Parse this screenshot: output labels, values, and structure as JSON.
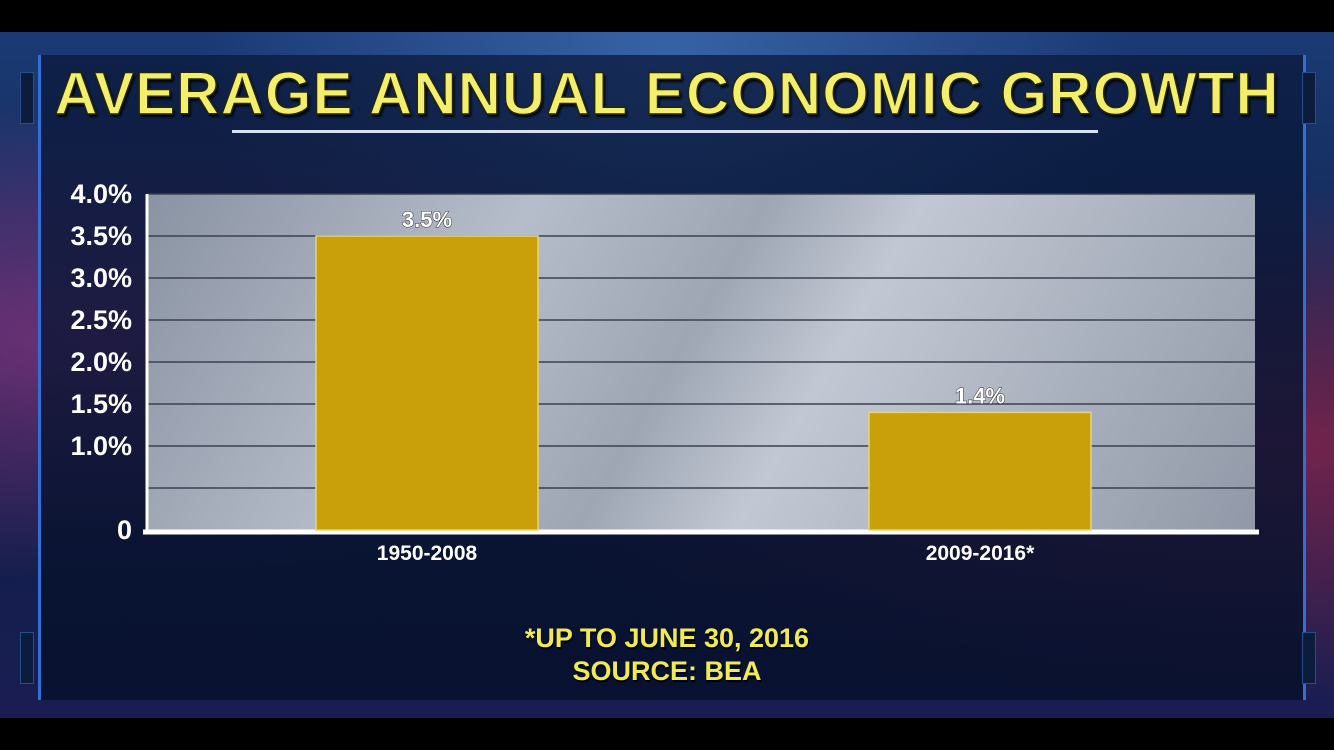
{
  "colors": {
    "bar": "#c9a00a",
    "title": "#f3ef6c",
    "note": "#f0ea55",
    "grid": "#3a4150"
  },
  "footnote": "*UP TO JUNE 30, 2016",
  "source": "SOURCE: BEA",
  "chart_data": {
    "type": "bar",
    "title": "AVERAGE ANNUAL ECONOMIC GROWTH",
    "xlabel": "",
    "ylabel": "",
    "categories": [
      "1950-2008",
      "2009-2016*"
    ],
    "values": [
      3.5,
      1.4
    ],
    "data_labels": [
      "3.5%",
      "1.4%"
    ],
    "ylim": [
      0,
      4.0
    ],
    "y_ticks": [
      0,
      0.5,
      1.0,
      1.5,
      2.0,
      2.5,
      3.0,
      3.5,
      4.0
    ],
    "y_tick_labels": [
      "0",
      "",
      "1.0%",
      "1.5%",
      "2.0%",
      "2.5%",
      "3.0%",
      "3.5%",
      "4.0%"
    ],
    "grid": true,
    "legend": "none"
  }
}
